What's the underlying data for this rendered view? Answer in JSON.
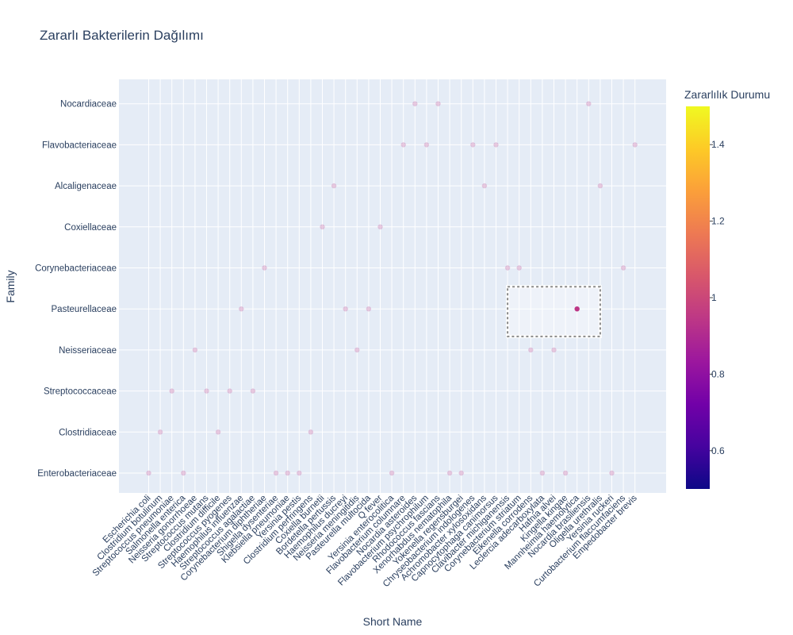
{
  "chart_data": {
    "type": "scatter",
    "title": "Zararlı Bakterilerin Dağılımı",
    "xlabel": "Short Name",
    "ylabel": "Family",
    "grid": true,
    "categories_x": [
      "Escherichia coli",
      "Clostridium botulinum",
      "Streptococcus pneumoniae",
      "Salmonella enterica",
      "Neisseria gonorrhoeae",
      "Streptococcus mutans",
      "Clostridium difficile",
      "Streptococcus pyogenes",
      "Haemophilus influenzae",
      "Streptococcus agalactiae",
      "Corynebacterium diphtheriae",
      "Shigella dysenteriae",
      "Klebsiella pneumoniae",
      "Yersinia pestis",
      "Clostridium perfringens",
      "Coxiella burnetii",
      "Bordetella pertussis",
      "Haemophilus ducreyi",
      "Neisseria meningitidis",
      "Pasteurella multocida",
      "Q fever",
      "Yersinia enterocolitica",
      "Flavobacterium columnare",
      "Nocardia asteroides",
      "Flavobacterium psychrophilum",
      "Rhodococcus fascians",
      "Xenorhabdus nematophila",
      "Yokenella regensburgei",
      "Chryseobacterium indologenes",
      "Achromobacter xylosoxidans",
      "Capnocytophaga canimorsus",
      "Clavibacter michiganensis",
      "Corynebacterium striatum",
      "Eikenella corrodens",
      "Leclercia adecarboxylata",
      "Hafnia alvei",
      "Kingella kingae",
      "Mannheimia haemolytica",
      "Nocardia brasiliensis",
      "Oligella urethralis",
      "Yersinia ruckeri",
      "Curtobacterium flaccumfaciens",
      "Empedobacter brevis"
    ],
    "categories_y": [
      "Enterobacteriaceae",
      "Clostridiaceae",
      "Streptococcaceae",
      "Neisseriaceae",
      "Pasteurellaceae",
      "Corynebacteriaceae",
      "Coxiellaceae",
      "Alcaligenaceae",
      "Flavobacteriaceae",
      "Nocardiaceae"
    ],
    "points": [
      {
        "x": "Escherichia coli",
        "y": "Enterobacteriaceae",
        "value": 1
      },
      {
        "x": "Clostridium botulinum",
        "y": "Clostridiaceae",
        "value": 1
      },
      {
        "x": "Streptococcus pneumoniae",
        "y": "Streptococcaceae",
        "value": 1
      },
      {
        "x": "Salmonella enterica",
        "y": "Enterobacteriaceae",
        "value": 1
      },
      {
        "x": "Neisseria gonorrhoeae",
        "y": "Neisseriaceae",
        "value": 1
      },
      {
        "x": "Streptococcus mutans",
        "y": "Streptococcaceae",
        "value": 1
      },
      {
        "x": "Clostridium difficile",
        "y": "Clostridiaceae",
        "value": 1
      },
      {
        "x": "Streptococcus pyogenes",
        "y": "Streptococcaceae",
        "value": 1
      },
      {
        "x": "Haemophilus influenzae",
        "y": "Pasteurellaceae",
        "value": 1
      },
      {
        "x": "Streptococcus agalactiae",
        "y": "Streptococcaceae",
        "value": 1
      },
      {
        "x": "Corynebacterium diphtheriae",
        "y": "Corynebacteriaceae",
        "value": 1
      },
      {
        "x": "Shigella dysenteriae",
        "y": "Enterobacteriaceae",
        "value": 1
      },
      {
        "x": "Klebsiella pneumoniae",
        "y": "Enterobacteriaceae",
        "value": 1
      },
      {
        "x": "Yersinia pestis",
        "y": "Enterobacteriaceae",
        "value": 1
      },
      {
        "x": "Clostridium perfringens",
        "y": "Clostridiaceae",
        "value": 1
      },
      {
        "x": "Coxiella burnetii",
        "y": "Coxiellaceae",
        "value": 1
      },
      {
        "x": "Bordetella pertussis",
        "y": "Alcaligenaceae",
        "value": 1
      },
      {
        "x": "Haemophilus ducreyi",
        "y": "Pasteurellaceae",
        "value": 1
      },
      {
        "x": "Neisseria meningitidis",
        "y": "Neisseriaceae",
        "value": 1
      },
      {
        "x": "Pasteurella multocida",
        "y": "Pasteurellaceae",
        "value": 1
      },
      {
        "x": "Q fever",
        "y": "Coxiellaceae",
        "value": 1
      },
      {
        "x": "Yersinia enterocolitica",
        "y": "Enterobacteriaceae",
        "value": 1
      },
      {
        "x": "Flavobacterium columnare",
        "y": "Flavobacteriaceae",
        "value": 1
      },
      {
        "x": "Nocardia asteroides",
        "y": "Nocardiaceae",
        "value": 1
      },
      {
        "x": "Flavobacterium psychrophilum",
        "y": "Flavobacteriaceae",
        "value": 1
      },
      {
        "x": "Rhodococcus fascians",
        "y": "Nocardiaceae",
        "value": 1
      },
      {
        "x": "Xenorhabdus nematophila",
        "y": "Enterobacteriaceae",
        "value": 1
      },
      {
        "x": "Yokenella regensburgei",
        "y": "Enterobacteriaceae",
        "value": 1
      },
      {
        "x": "Chryseobacterium indologenes",
        "y": "Flavobacteriaceae",
        "value": 1
      },
      {
        "x": "Achromobacter xylosoxidans",
        "y": "Alcaligenaceae",
        "value": 1
      },
      {
        "x": "Capnocytophaga canimorsus",
        "y": "Flavobacteriaceae",
        "value": 1
      },
      {
        "x": "Clavibacter michiganensis",
        "y": "Corynebacteriaceae",
        "value": 1
      },
      {
        "x": "Corynebacterium striatum",
        "y": "Corynebacteriaceae",
        "value": 1
      },
      {
        "x": "Eikenella corrodens",
        "y": "Neisseriaceae",
        "value": 1
      },
      {
        "x": "Leclercia adecarboxylata",
        "y": "Enterobacteriaceae",
        "value": 1
      },
      {
        "x": "Hafnia alvei",
        "y": "Neisseriaceae",
        "value": 1
      },
      {
        "x": "Kingella kingae",
        "y": "Enterobacteriaceae",
        "value": 1
      },
      {
        "x": "Mannheimia haemolytica",
        "y": "Pasteurellaceae",
        "value": 1,
        "selected": true
      },
      {
        "x": "Nocardia brasiliensis",
        "y": "Nocardiaceae",
        "value": 1
      },
      {
        "x": "Oligella urethralis",
        "y": "Alcaligenaceae",
        "value": 1
      },
      {
        "x": "Yersinia ruckeri",
        "y": "Enterobacteriaceae",
        "value": 1
      },
      {
        "x": "Curtobacterium flaccumfaciens",
        "y": "Corynebacteriaceae",
        "value": 1
      },
      {
        "x": "Empedobacter brevis",
        "y": "Flavobacteriaceae",
        "value": 1
      }
    ],
    "colorbar": {
      "title": "Zararlılık Durumu",
      "range": [
        0.5,
        1.5
      ],
      "ticks": [
        0.6,
        0.8,
        1,
        1.2,
        1.4
      ],
      "tick_labels": [
        "0.6",
        "0.8",
        "1",
        "1.2",
        "1.4"
      ],
      "colorscale": [
        "#0d0887",
        "#46039f",
        "#7201a8",
        "#9c179e",
        "#bd3786",
        "#d8576b",
        "#ed7953",
        "#fb9f3a",
        "#fdca26",
        "#f0f921"
      ]
    },
    "selection_box": {
      "x_range": [
        "Clavibacter michiganensis",
        "Oligella urethralis"
      ],
      "y_range": [
        "Neisseriaceae",
        "Pasteurellaceae"
      ]
    },
    "marker_color": "#bd3786",
    "plot_bg": "#e5ecf6"
  }
}
